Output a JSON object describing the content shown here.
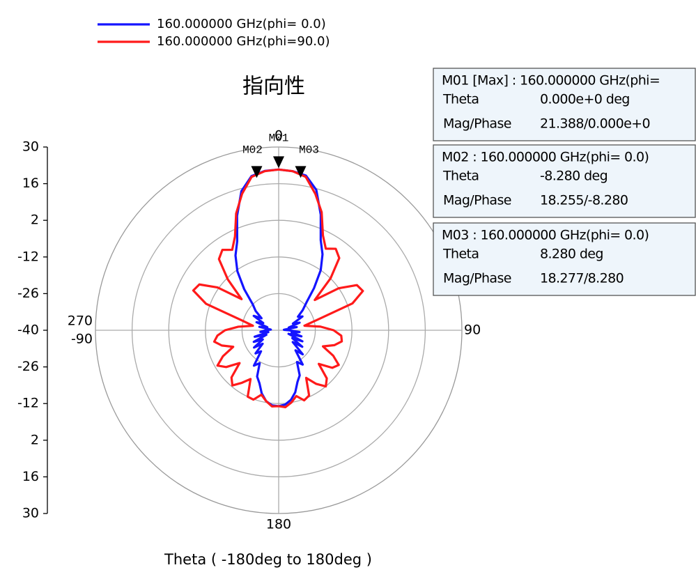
{
  "chart_data": {
    "type": "polar",
    "title": "指向性",
    "axis_label": "Theta ( -180deg to 180deg )",
    "theta": [
      -180,
      -175,
      -170,
      -165,
      -160,
      -155,
      -150,
      -145,
      -140,
      -135,
      -130,
      -125,
      -120,
      -115,
      -110,
      -105,
      -100,
      -95,
      -90,
      -85,
      -80,
      -75,
      -70,
      -65,
      -60,
      -55,
      -50,
      -45,
      -40,
      -35,
      -30,
      -25,
      -20,
      -15,
      -10,
      -5,
      0,
      5,
      10,
      15,
      20,
      25,
      30,
      35,
      40,
      45,
      50,
      55,
      60,
      65,
      70,
      75,
      80,
      85,
      90,
      95,
      100,
      105,
      110,
      115,
      120,
      125,
      130,
      135,
      140,
      145,
      150,
      155,
      160,
      165,
      170,
      175,
      180
    ],
    "series": [
      {
        "name": "160.000000 GHz(phi= 0.0)",
        "color": "#1414ff",
        "values": [
          -11.0,
          -11.2,
          -12.5,
          -15.0,
          -18.5,
          -20.5,
          -25.5,
          -23.5,
          -29.5,
          -27.5,
          -32.0,
          -28.5,
          -33.0,
          -29.5,
          -35.0,
          -30.5,
          -36.0,
          -33.0,
          -35.0,
          -37.0,
          -32.5,
          -35.5,
          -31.0,
          -33.5,
          -29.0,
          -32.0,
          -28.5,
          -26.0,
          -19.5,
          -12.5,
          -7.0,
          -2.5,
          6.5,
          15.0,
          19.8,
          21.1,
          21.4,
          21.0,
          20.0,
          15.5,
          7.0,
          -2.0,
          -6.5,
          -12.0,
          -19.0,
          -25.0,
          -28.0,
          -31.0,
          -29.5,
          -34.0,
          -31.5,
          -36.0,
          -33.0,
          -38.0,
          -36.0,
          -32.0,
          -35.0,
          -31.0,
          -36.0,
          -30.0,
          -34.0,
          -29.0,
          -33.0,
          -27.0,
          -30.0,
          -24.0,
          -26.0,
          -21.0,
          -19.0,
          -15.5,
          -13.0,
          -11.5,
          -11.0
        ]
      },
      {
        "name": "160.000000 GHz(phi=90.0)",
        "color": "#ff1a1a",
        "values": [
          -11.0,
          -10.8,
          -12.5,
          -14.5,
          -11.8,
          -12.0,
          -18.5,
          -15.5,
          -12.5,
          -14.5,
          -20.5,
          -15.5,
          -13.0,
          -16.5,
          -21.5,
          -17.5,
          -15.0,
          -16.5,
          -19.5,
          -24.5,
          -30.0,
          -25.5,
          -10.5,
          -4.0,
          -5.0,
          -11.5,
          -21.5,
          -12.5,
          -4.5,
          -2.5,
          -4.5,
          -0.5,
          7.5,
          14.0,
          19.5,
          21.0,
          21.4,
          21.0,
          19.5,
          14.0,
          8.0,
          0.0,
          -4.0,
          -2.0,
          -4.0,
          -12.0,
          -22.0,
          -12.0,
          -5.5,
          -4.5,
          -10.0,
          -25.0,
          -30.0,
          -24.0,
          -19.0,
          -16.0,
          -15.5,
          -18.0,
          -22.0,
          -17.0,
          -13.5,
          -15.0,
          -20.0,
          -14.0,
          -12.0,
          -15.0,
          -19.0,
          -12.5,
          -11.5,
          -14.0,
          -12.0,
          -10.5,
          -11.0
        ]
      }
    ],
    "rlim": [
      -40,
      30
    ],
    "rticks": [
      -40,
      -26,
      -12,
      2,
      16,
      30
    ],
    "theta_ticks": [
      0,
      90,
      180,
      270,
      -90
    ],
    "grid": true,
    "markers": [
      {
        "label": "M01",
        "theta": 0,
        "value": 21.388,
        "header": "M01 [Max] : 160.000000 GHz(phi=",
        "rows": [
          [
            "Theta",
            "0.000e+0 deg"
          ],
          [
            "Mag/Phase",
            "21.388/0.000e+0"
          ]
        ]
      },
      {
        "label": "M02",
        "theta": -8.28,
        "value": 18.255,
        "header": "M02 : 160.000000 GHz(phi= 0.0)",
        "rows": [
          [
            "Theta",
            "-8.280 deg"
          ],
          [
            "Mag/Phase",
            "18.255/-8.280"
          ]
        ]
      },
      {
        "label": "M03",
        "theta": 8.28,
        "value": 18.277,
        "header": "M03 : 160.000000 GHz(phi= 0.0)",
        "rows": [
          [
            "Theta",
            "8.280 deg"
          ],
          [
            "Mag/Phase",
            "18.277/8.280"
          ]
        ]
      }
    ]
  }
}
